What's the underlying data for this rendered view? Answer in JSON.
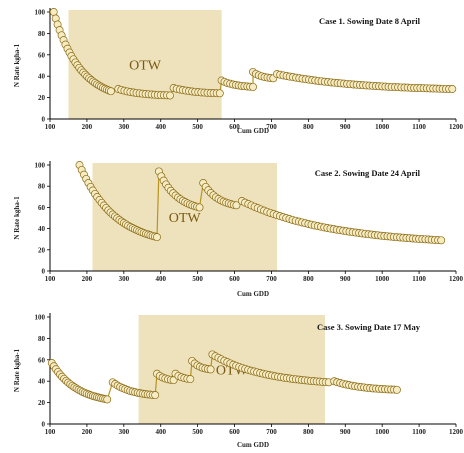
{
  "chart_data": [
    {
      "type": "scatter",
      "title": "Case 1. Sowing Date 8 April",
      "xlabel": "Cum GDD",
      "ylabel": "N Rate kgha-1",
      "xlim": [
        100,
        1200
      ],
      "ylim": [
        0,
        100
      ],
      "xticks": [
        "100",
        "200",
        "300",
        "400",
        "500",
        "600",
        "700",
        "800",
        "900",
        "1000",
        "1100",
        "1200"
      ],
      "yticks": [
        "0",
        "20",
        "40",
        "60",
        "80",
        "100"
      ],
      "band": {
        "label": "OTW",
        "x0": 150,
        "x1": 565
      },
      "segments": [
        {
          "x0": 110,
          "x1": 265,
          "y0": 100,
          "y1": 26,
          "n": 30
        },
        {
          "x0": 285,
          "x1": 425,
          "y0": 28,
          "y1": 22,
          "n": 18
        },
        {
          "x0": 435,
          "x1": 560,
          "y0": 29,
          "y1": 24,
          "n": 16
        },
        {
          "x0": 565,
          "x1": 650,
          "y0": 36,
          "y1": 30,
          "n": 12
        },
        {
          "x0": 650,
          "x1": 705,
          "y0": 44,
          "y1": 38,
          "n": 8
        },
        {
          "x0": 715,
          "x1": 1190,
          "y0": 42,
          "y1": 28,
          "n": 56
        }
      ]
    },
    {
      "type": "scatter",
      "title": "Case 2. Sowing Date 24 April",
      "xlabel": "Cum GDD",
      "ylabel": "N Rate kgha-1",
      "xlim": [
        100,
        1200
      ],
      "ylim": [
        0,
        100
      ],
      "xticks": [
        "100",
        "200",
        "300",
        "400",
        "500",
        "600",
        "700",
        "800",
        "900",
        "1000",
        "1100",
        "1200"
      ],
      "yticks": [
        "0",
        "20",
        "40",
        "60",
        "80",
        "100"
      ],
      "band": {
        "label": "OTW",
        "x0": 215,
        "x1": 715
      },
      "segments": [
        {
          "x0": 180,
          "x1": 390,
          "y0": 100,
          "y1": 32,
          "n": 36
        },
        {
          "x0": 395,
          "x1": 505,
          "y0": 94,
          "y1": 60,
          "n": 18
        },
        {
          "x0": 515,
          "x1": 605,
          "y0": 83,
          "y1": 62,
          "n": 14
        },
        {
          "x0": 620,
          "x1": 1160,
          "y0": 66,
          "y1": 29,
          "n": 64
        }
      ]
    },
    {
      "type": "scatter",
      "title": "Case 3. Sowing Date 17 May",
      "xlabel": "Cum GDD",
      "ylabel": "N Rate kgha-1",
      "xlim": [
        100,
        1200
      ],
      "ylim": [
        0,
        100
      ],
      "xticks": [
        "100",
        "200",
        "300",
        "400",
        "500",
        "600",
        "700",
        "800",
        "900",
        "1000",
        "1100",
        "1200"
      ],
      "yticks": [
        "0",
        "20",
        "40",
        "60",
        "80",
        "100"
      ],
      "band": {
        "label": "OTW",
        "x0": 340,
        "x1": 845
      },
      "segments": [
        {
          "x0": 105,
          "x1": 255,
          "y0": 57,
          "y1": 23,
          "n": 28
        },
        {
          "x0": 270,
          "x1": 385,
          "y0": 39,
          "y1": 27,
          "n": 18
        },
        {
          "x0": 390,
          "x1": 435,
          "y0": 47,
          "y1": 41,
          "n": 7
        },
        {
          "x0": 440,
          "x1": 480,
          "y0": 47,
          "y1": 42,
          "n": 6
        },
        {
          "x0": 485,
          "x1": 535,
          "y0": 59,
          "y1": 51,
          "n": 8
        },
        {
          "x0": 540,
          "x1": 855,
          "y0": 65,
          "y1": 39,
          "n": 40
        },
        {
          "x0": 870,
          "x1": 1040,
          "y0": 40,
          "y1": 32,
          "n": 22
        }
      ]
    }
  ]
}
